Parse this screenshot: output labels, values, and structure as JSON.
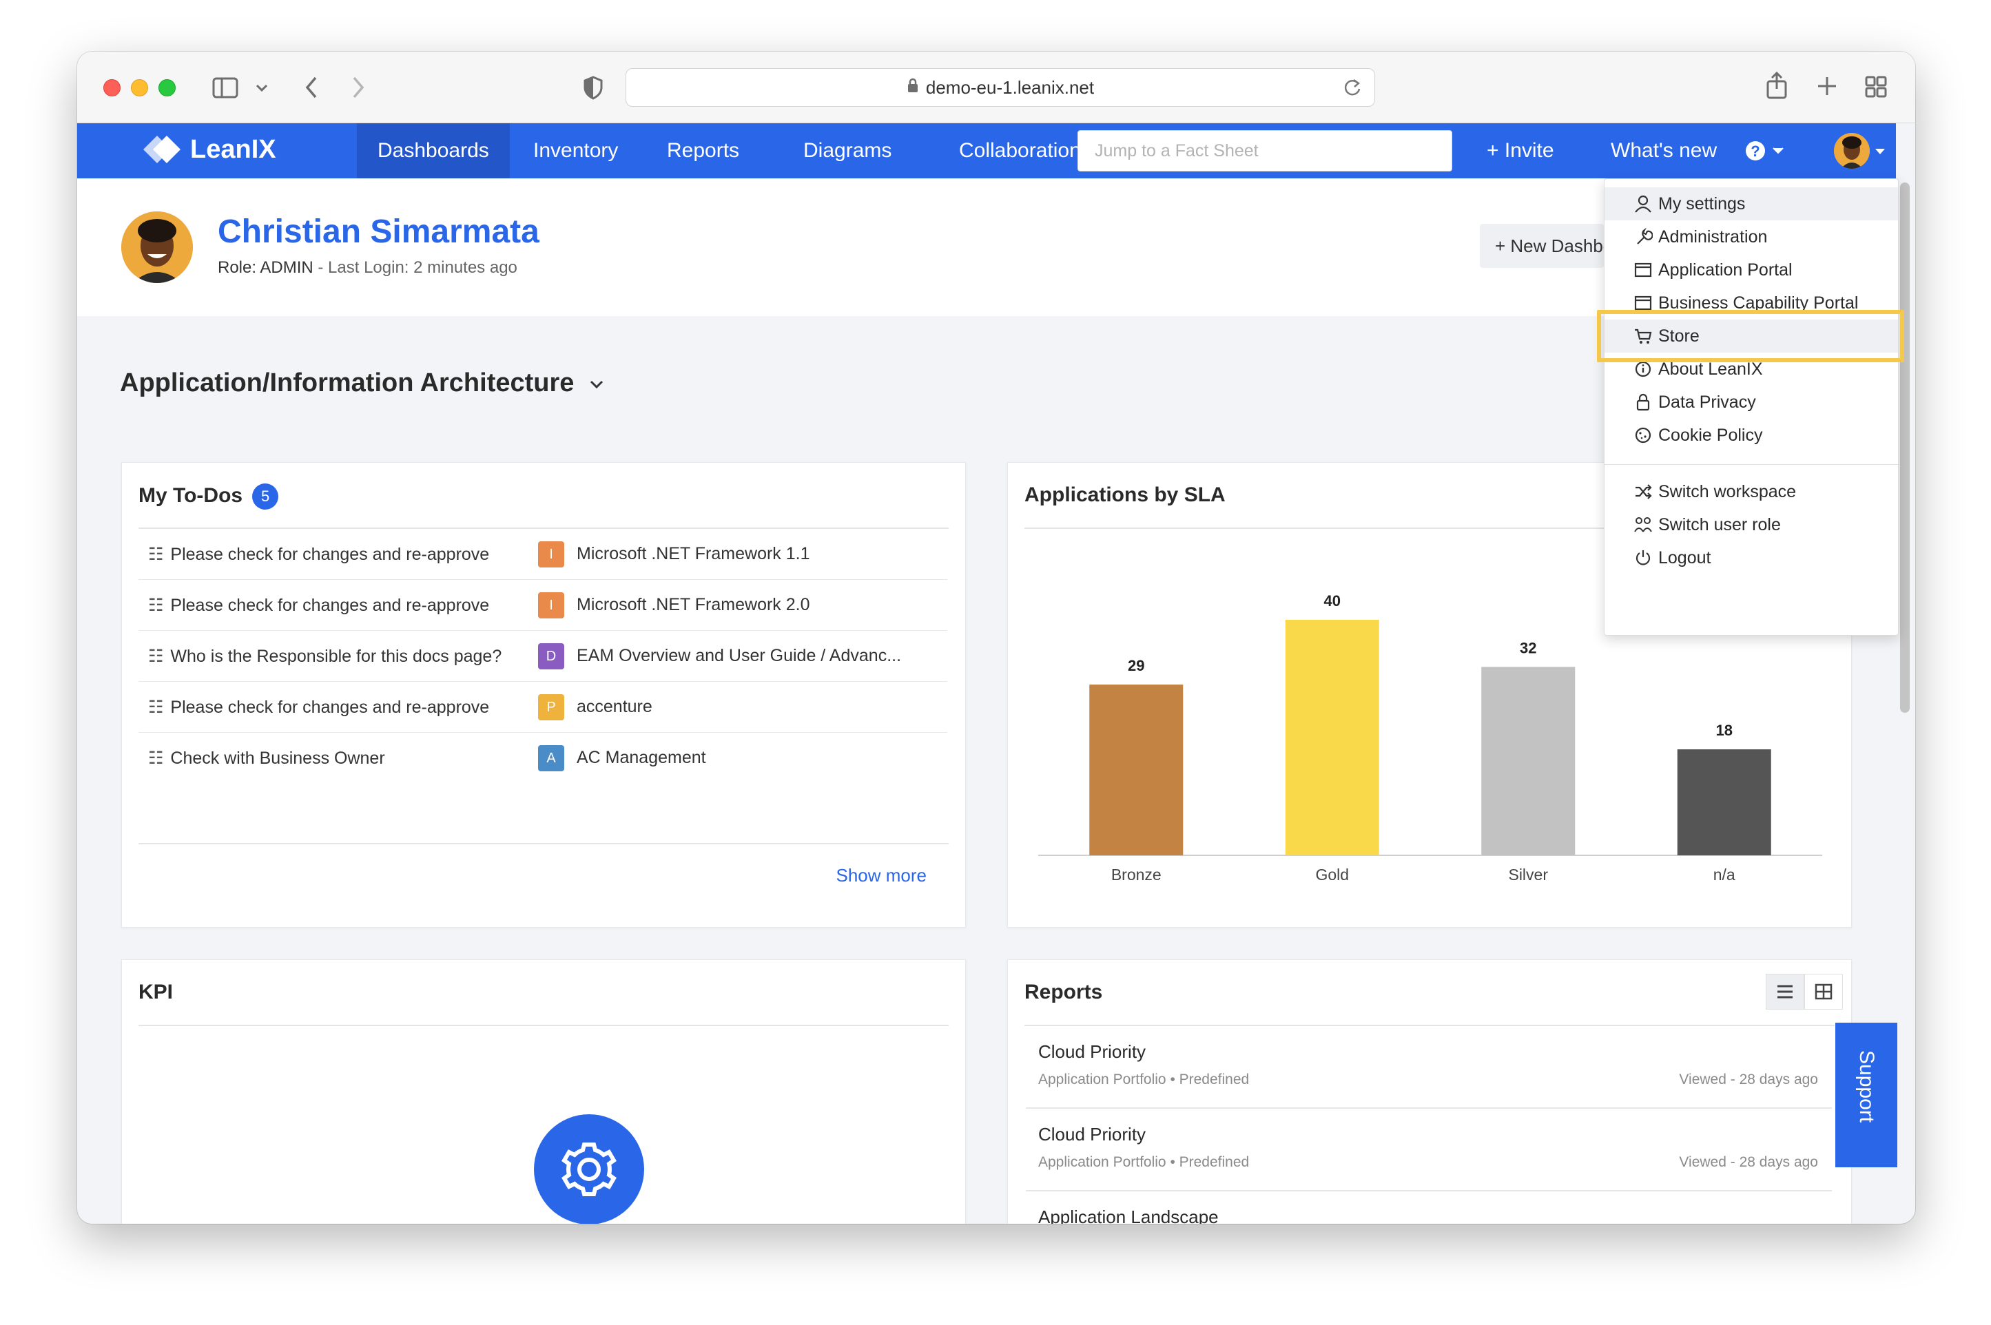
{
  "browser": {
    "url": "demo-eu-1.leanix.net"
  },
  "nav": {
    "brand": "LeanIX",
    "items": [
      {
        "label": "Dashboards"
      },
      {
        "label": "Inventory"
      },
      {
        "label": "Reports"
      },
      {
        "label": "Diagrams"
      },
      {
        "label": "Collaboration"
      }
    ],
    "search_placeholder": "Jump to a Fact Sheet",
    "invite": "+ Invite",
    "whats_new": "What's new",
    "help_icon": "question-circle-icon",
    "accent": "#2a66e8"
  },
  "header": {
    "name": "Christian Simarmata",
    "role_label": "Role: ADMIN",
    "last_login": "- Last Login: 2 minutes ago",
    "new_dashboard": "+ New Dashboard"
  },
  "dashboard": {
    "title": "Application/Information Architecture"
  },
  "todos": {
    "title": "My To-Dos",
    "count": "5",
    "rows": [
      {
        "task": "Please check for changes and re-approve",
        "chip": "I",
        "chip_color": "#e98a4a",
        "fact": "Microsoft .NET Framework 1.1"
      },
      {
        "task": "Please check for changes and re-approve",
        "chip": "I",
        "chip_color": "#e98a4a",
        "fact": "Microsoft .NET Framework 2.0"
      },
      {
        "task": "Who is the Responsible for this docs page?",
        "chip": "D",
        "chip_color": "#8a5cc1",
        "fact": "EAM Overview and User Guide / Advanc..."
      },
      {
        "task": "Please check for changes and re-approve",
        "chip": "P",
        "chip_color": "#efb23c",
        "fact": "accenture"
      },
      {
        "task": "Check with Business Owner",
        "chip": "A",
        "chip_color": "#4a8cc8",
        "fact": "AC Management"
      }
    ],
    "show_more": "Show more"
  },
  "sla_card": {
    "title": "Applications by SLA"
  },
  "chart_data": {
    "type": "bar",
    "title": "Applications by SLA",
    "categories": [
      "Bronze",
      "Gold",
      "Silver",
      "n/a"
    ],
    "values": [
      29,
      40,
      32,
      18
    ],
    "colors": [
      "#c38443",
      "#f9d84a",
      "#c2c2c2",
      "#555555"
    ],
    "ylim": [
      0,
      40
    ],
    "grid": false,
    "legend": "none"
  },
  "kpi": {
    "title": "KPI"
  },
  "reports": {
    "title": "Reports",
    "rows": [
      {
        "title": "Cloud Priority",
        "sub": "Application Portfolio • Predefined",
        "viewed": "Viewed - 28 days ago"
      },
      {
        "title": "Cloud Priority",
        "sub": "Application Portfolio • Predefined",
        "viewed": "Viewed - 28 days ago"
      },
      {
        "title": "Application Landscape",
        "sub": "",
        "viewed": ""
      }
    ]
  },
  "user_menu": {
    "items": [
      {
        "label": "My settings",
        "icon": "user-icon"
      },
      {
        "label": "Administration",
        "icon": "wrench-icon"
      },
      {
        "label": "Application Portal",
        "icon": "window-icon"
      },
      {
        "label": "Business Capability Portal",
        "icon": "window-icon"
      },
      {
        "label": "Store",
        "icon": "cart-icon"
      },
      {
        "label": "About LeanIX",
        "icon": "info-icon"
      },
      {
        "label": "Data Privacy",
        "icon": "lock-icon"
      },
      {
        "label": "Cookie Policy",
        "icon": "cookie-icon"
      },
      {
        "label": "Switch workspace",
        "icon": "shuffle-icon"
      },
      {
        "label": "Switch user role",
        "icon": "user-switch-icon"
      },
      {
        "label": "Logout",
        "icon": "power-icon"
      }
    ],
    "highlight_color": "#f4c84a"
  },
  "support": {
    "label": "Support"
  }
}
